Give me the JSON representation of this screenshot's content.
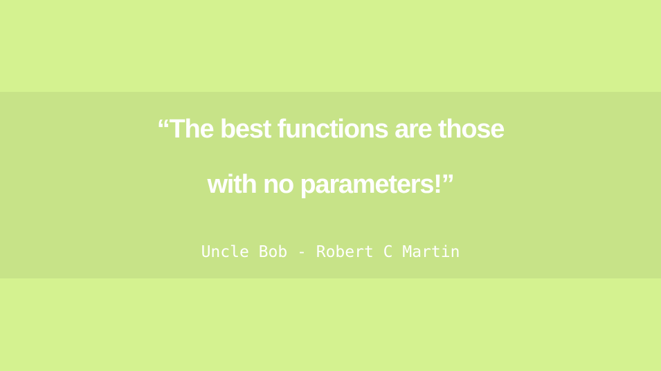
{
  "quote": {
    "line1": "“The best functions are those",
    "line2": "with no parameters!”"
  },
  "attribution": "Uncle Bob - Robert C Martin",
  "colors": {
    "background": "#d4f290",
    "band": "#c7e388",
    "text": "#ffffff"
  }
}
